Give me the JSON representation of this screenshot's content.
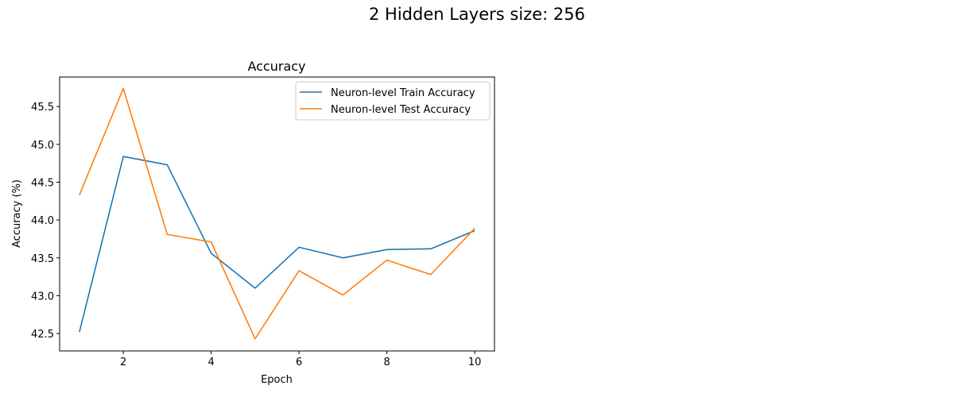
{
  "suptitle": "2 Hidden Layers size: 256",
  "chart_data": {
    "type": "line",
    "title": "Accuracy",
    "xlabel": "Epoch",
    "ylabel": "Accuracy (%)",
    "x": [
      1,
      2,
      3,
      4,
      5,
      6,
      7,
      8,
      9,
      10
    ],
    "xlim": [
      0.55,
      10.45
    ],
    "ylim": [
      42.27,
      45.89
    ],
    "xticks": [
      2,
      4,
      6,
      8,
      10
    ],
    "yticks": [
      42.5,
      43.0,
      43.5,
      44.0,
      44.5,
      45.0,
      45.5
    ],
    "ytick_labels": [
      "42.5",
      "43.0",
      "43.5",
      "44.0",
      "44.5",
      "45.0",
      "45.5"
    ],
    "grid": false,
    "legend_position": "top-right",
    "series": [
      {
        "name": "Neuron-level Train Accuracy",
        "color": "#1f77b4",
        "values": [
          42.52,
          44.84,
          44.73,
          43.56,
          43.1,
          43.64,
          43.5,
          43.61,
          43.62,
          43.86
        ]
      },
      {
        "name": "Neuron-level Test Accuracy",
        "color": "#ff7f0e",
        "values": [
          44.33,
          45.74,
          43.81,
          43.71,
          42.43,
          43.33,
          43.01,
          43.47,
          43.28,
          43.89
        ]
      }
    ]
  }
}
